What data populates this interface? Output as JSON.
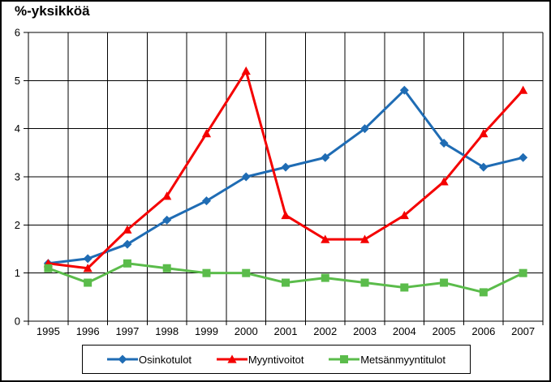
{
  "chart_data": {
    "type": "line",
    "title": "%-yksikköä",
    "categories": [
      "1995",
      "1996",
      "1997",
      "1998",
      "1999",
      "2000",
      "2001",
      "2002",
      "2003",
      "2004",
      "2005",
      "2006",
      "2007"
    ],
    "series": [
      {
        "name": "Osinkotulot",
        "color": "#1F6CB4",
        "marker": "diamond",
        "values": [
          1.2,
          1.3,
          1.6,
          2.1,
          2.5,
          3.0,
          3.2,
          3.4,
          4.0,
          4.8,
          3.7,
          3.2,
          3.4
        ]
      },
      {
        "name": "Myyntivoitot",
        "color": "#F40000",
        "marker": "triangle",
        "values": [
          1.2,
          1.1,
          1.9,
          2.6,
          3.9,
          5.2,
          2.2,
          1.7,
          1.7,
          2.2,
          2.9,
          3.9,
          4.8
        ]
      },
      {
        "name": "Metsänmyyntitulot",
        "color": "#5BBC4B",
        "marker": "square",
        "values": [
          1.1,
          0.8,
          1.2,
          1.1,
          1.0,
          1.0,
          0.8,
          0.9,
          0.8,
          0.7,
          0.8,
          0.6,
          1.0
        ]
      }
    ],
    "xlabel": "",
    "ylabel": "",
    "ylim": [
      0,
      6
    ],
    "yticks": [
      "0",
      "1",
      "2",
      "3",
      "4",
      "5",
      "6"
    ],
    "grid": "both",
    "grid_color": "#000000",
    "legend_position": "bottom"
  }
}
